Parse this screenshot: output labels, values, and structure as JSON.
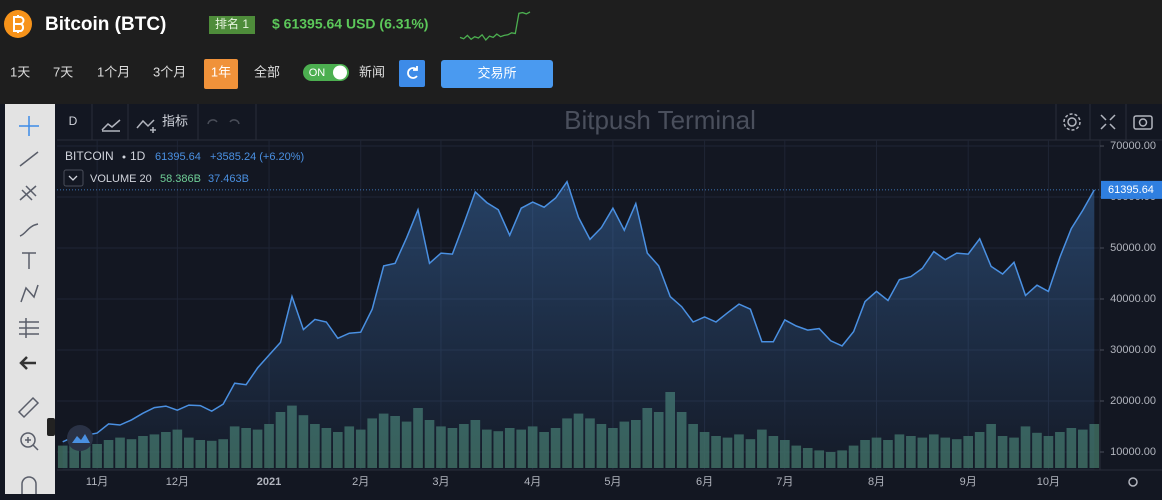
{
  "header": {
    "name": "Bitcoin (BTC)",
    "rank": "排名 1",
    "price": "$ 61395.64 USD (6.31%)",
    "sparkline": [
      57500,
      57300,
      57800,
      57200,
      57600,
      57400,
      57900,
      57100,
      57700,
      57500,
      58000,
      57600,
      57800,
      57900,
      58200,
      58100,
      61200,
      61300,
      61100,
      61395
    ]
  },
  "controls": {
    "ranges": [
      "1天",
      "7天",
      "1个月",
      "3个月",
      "1年",
      "全部"
    ],
    "active": 4,
    "toggle": "ON",
    "news": "新闻",
    "exchange": "交易所"
  },
  "toolbar": {
    "interval": "D",
    "indicators": "指标",
    "watermark": "Bitpush Terminal"
  },
  "chart_data": {
    "type": "line",
    "legend": {
      "interval": "1D",
      "change": "+3585.24 (+6.20%)",
      "volume": "VOLUME 20",
      "volume_values": [
        "58.386B",
        "37.463B"
      ]
    },
    "categories": [
      null,
      null,
      null,
      "11月",
      null,
      null,
      null,
      null,
      null,
      null,
      "12月",
      null,
      null,
      null,
      null,
      null,
      null,
      null,
      "2021",
      null,
      null,
      null,
      null,
      null,
      null,
      null,
      "2月",
      null,
      null,
      null,
      null,
      null,
      null,
      "3月",
      null,
      null,
      null,
      null,
      null,
      null,
      null,
      "4月",
      null,
      null,
      null,
      null,
      null,
      null,
      "5月",
      null,
      null,
      null,
      null,
      null,
      null,
      null,
      "6月",
      null,
      null,
      null,
      null,
      null,
      null,
      "7月",
      null,
      null,
      null,
      null,
      null,
      null,
      null,
      "8月",
      null,
      null,
      null,
      null,
      null,
      null,
      null,
      "9月",
      null,
      null,
      null,
      null,
      null,
      null,
      "10月",
      null,
      null,
      null,
      null
    ],
    "series": [
      {
        "name": "BITCOIN",
        "color": "#4a90e2",
        "values": [
          12000,
          13000,
          13300,
          13700,
          15500,
          15300,
          16300,
          17600,
          18700,
          19000,
          18200,
          19200,
          19100,
          18000,
          19400,
          23500,
          23200,
          26500,
          29000,
          31500,
          40500,
          34000,
          36000,
          35500,
          32300,
          33300,
          33500,
          38000,
          46500,
          47000,
          52000,
          57500,
          47000,
          49000,
          48800,
          54800,
          61000,
          58900,
          57500,
          52500,
          57800,
          59000,
          58000,
          59800,
          63000,
          56000,
          51700,
          54000,
          57800,
          53500,
          58700,
          49000,
          46500,
          40500,
          38500,
          35500,
          36500,
          35500,
          37300,
          39000,
          38000,
          31600,
          31600,
          35900,
          34700,
          33900,
          34200,
          31800,
          30800,
          33600,
          39500,
          41500,
          39700,
          43800,
          44400,
          46000,
          49300,
          47700,
          49000,
          48800,
          51800,
          46400,
          44900,
          47200,
          40700,
          42700,
          41500,
          48200,
          53800,
          57400,
          61395.64
        ]
      }
    ],
    "volume": {
      "color": "#3e6b5e",
      "values": [
        28,
        30,
        32,
        30,
        35,
        38,
        36,
        40,
        42,
        45,
        48,
        38,
        35,
        34,
        36,
        52,
        50,
        48,
        55,
        70,
        78,
        66,
        55,
        50,
        45,
        52,
        48,
        62,
        68,
        65,
        58,
        75,
        60,
        52,
        50,
        55,
        60,
        48,
        46,
        50,
        48,
        52,
        45,
        50,
        62,
        68,
        62,
        55,
        50,
        58,
        60,
        75,
        70,
        95,
        70,
        55,
        45,
        40,
        38,
        42,
        36,
        48,
        40,
        35,
        28,
        25,
        22,
        20,
        22,
        28,
        35,
        38,
        35,
        42,
        40,
        38,
        42,
        38,
        36,
        40,
        45,
        55,
        40,
        38,
        52,
        44,
        40,
        45,
        50,
        48,
        55
      ]
    },
    "ylim": [
      6470,
      71180
    ],
    "yticks": [
      {
        "value": 10000,
        "label": "10000.00"
      },
      {
        "value": 20000,
        "label": "20000.00"
      },
      {
        "value": 30000,
        "label": "30000.00"
      },
      {
        "value": 40000,
        "label": "40000.00"
      },
      {
        "value": 50000,
        "label": "50000.00"
      },
      {
        "value": 60000,
        "label": "60000.00"
      },
      {
        "value": 70000,
        "label": "70000.00"
      }
    ],
    "grid": true
  }
}
